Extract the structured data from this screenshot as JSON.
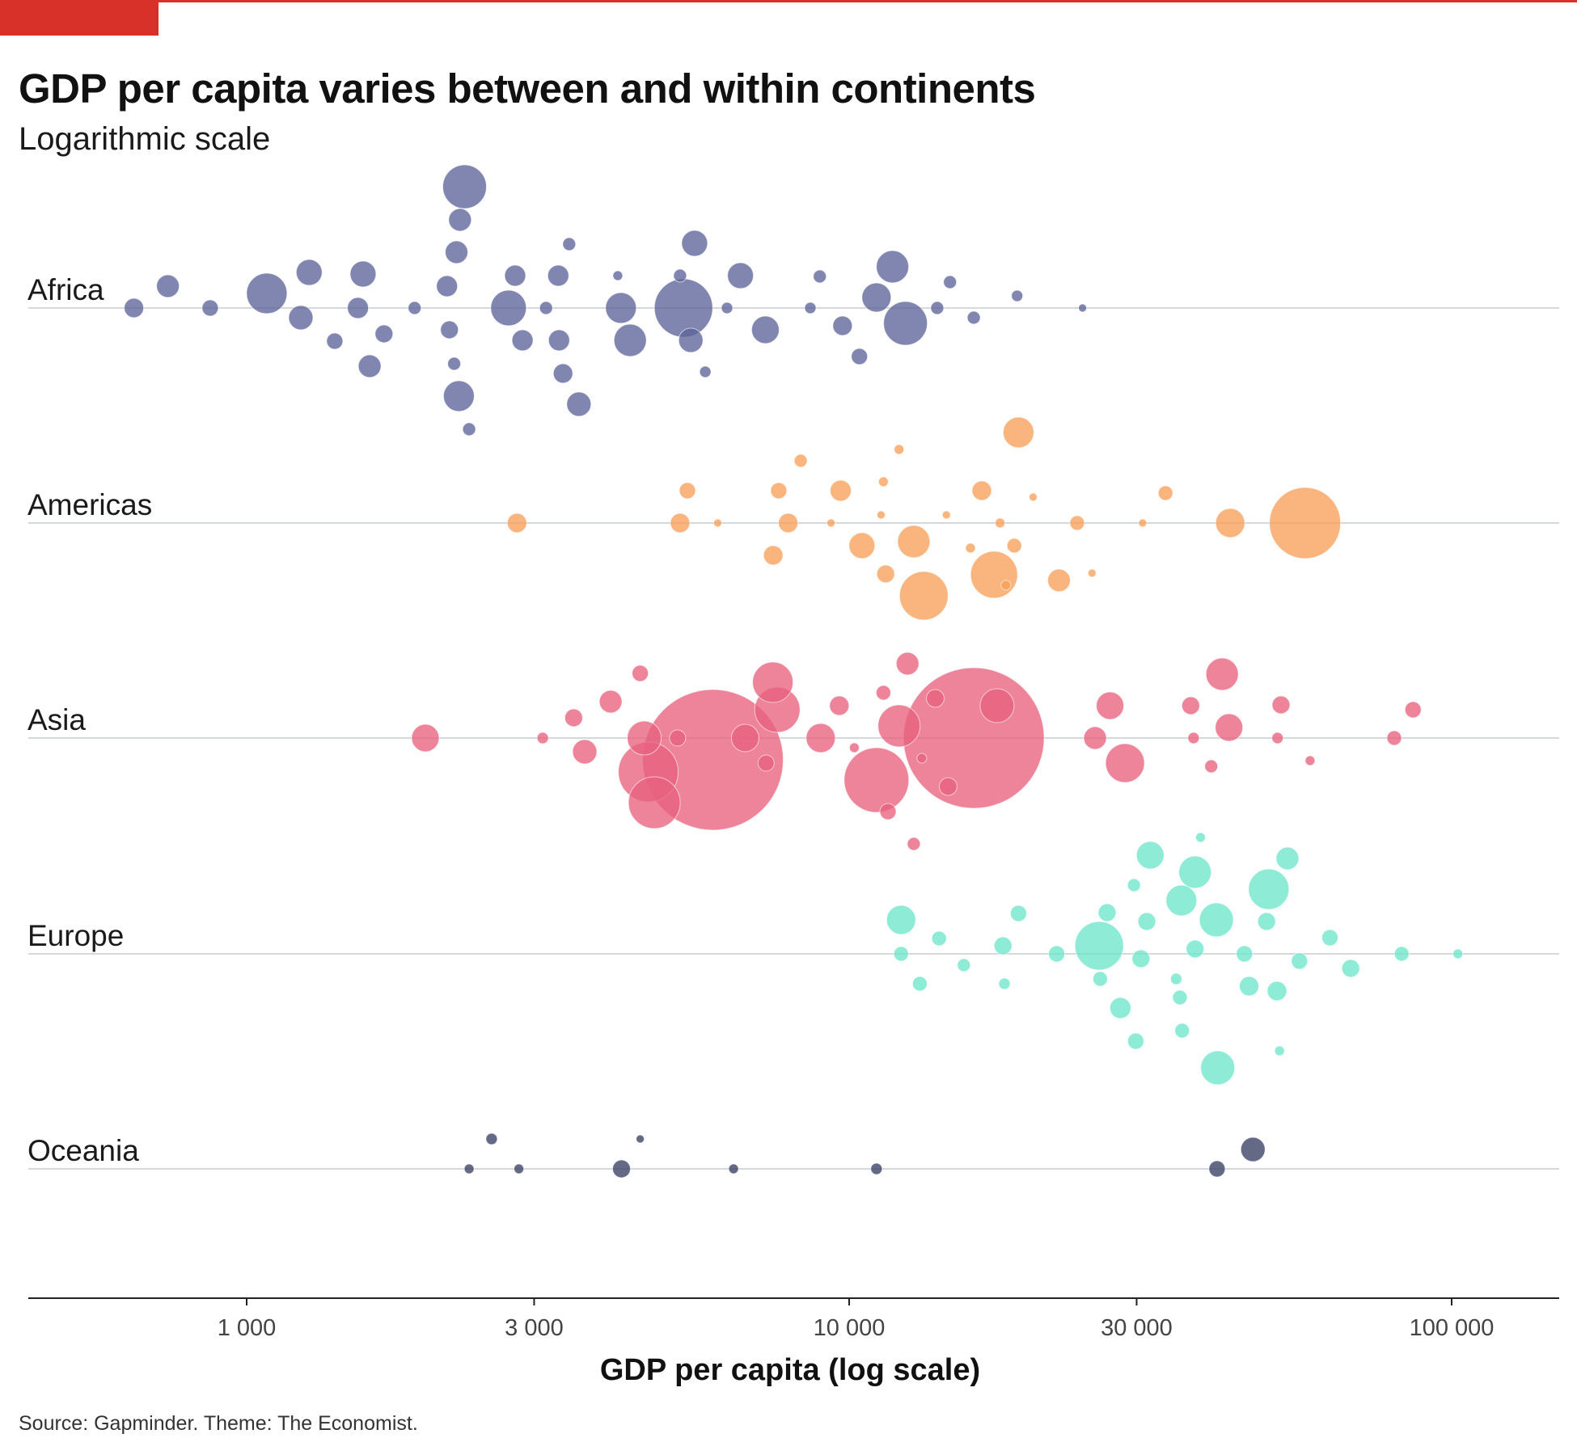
{
  "title": "GDP per capita varies between and within continents",
  "subtitle": "Logarithmic scale",
  "source": "Source: Gapminder. Theme: The Economist.",
  "colors": {
    "accent": "#d7312a",
    "Africa": "#5c6499",
    "Americas": "#f9a05a",
    "Asia": "#e8617e",
    "Europe": "#6ee6cb",
    "Oceania": "#3d4368"
  },
  "chart_data": {
    "type": "scatter",
    "x_scale": "log",
    "xlabel": "GDP per capita (log scale)",
    "xlim": [
      500,
      130000
    ],
    "x_ticks": [
      1000,
      3000,
      10000,
      30000,
      100000
    ],
    "x_tick_labels": [
      "1 000",
      "3 000",
      "10 000",
      "30 000",
      "100 000"
    ],
    "categories": [
      "Africa",
      "Americas",
      "Asia",
      "Europe",
      "Oceania"
    ],
    "grid": "horizontal lines at each category",
    "legend": "none",
    "series": [
      {
        "name": "Africa",
        "points": [
          {
            "x": 650,
            "offset": 0,
            "size": 12
          },
          {
            "x": 740,
            "offset": 27,
            "size": 14
          },
          {
            "x": 870,
            "offset": 0,
            "size": 10
          },
          {
            "x": 1080,
            "offset": 18,
            "size": 25
          },
          {
            "x": 1230,
            "offset": -12,
            "size": 15
          },
          {
            "x": 1270,
            "offset": 44,
            "size": 16
          },
          {
            "x": 1400,
            "offset": -41,
            "size": 10
          },
          {
            "x": 1530,
            "offset": 0,
            "size": 13
          },
          {
            "x": 1560,
            "offset": 42,
            "size": 16
          },
          {
            "x": 1600,
            "offset": -72,
            "size": 14
          },
          {
            "x": 1690,
            "offset": -32,
            "size": 11
          },
          {
            "x": 1900,
            "offset": 0,
            "size": 8
          },
          {
            "x": 2150,
            "offset": 27,
            "size": 13
          },
          {
            "x": 2170,
            "offset": -27,
            "size": 11
          },
          {
            "x": 2230,
            "offset": 69,
            "size": 14
          },
          {
            "x": 2210,
            "offset": -69,
            "size": 8
          },
          {
            "x": 2260,
            "offset": 109,
            "size": 14
          },
          {
            "x": 2300,
            "offset": 150,
            "size": 27
          },
          {
            "x": 2250,
            "offset": -109,
            "size": 19
          },
          {
            "x": 2340,
            "offset": -150,
            "size": 8
          },
          {
            "x": 2720,
            "offset": 0,
            "size": 22
          },
          {
            "x": 2790,
            "offset": 40,
            "size": 13
          },
          {
            "x": 2870,
            "offset": -40,
            "size": 13
          },
          {
            "x": 3140,
            "offset": 0,
            "size": 8
          },
          {
            "x": 3290,
            "offset": 40,
            "size": 13
          },
          {
            "x": 3300,
            "offset": -40,
            "size": 13
          },
          {
            "x": 3350,
            "offset": -81,
            "size": 12
          },
          {
            "x": 3430,
            "offset": 79,
            "size": 8
          },
          {
            "x": 3560,
            "offset": -119,
            "size": 15
          },
          {
            "x": 4130,
            "offset": 40,
            "size": 6
          },
          {
            "x": 4180,
            "offset": 0,
            "size": 19
          },
          {
            "x": 4330,
            "offset": -40,
            "size": 20
          },
          {
            "x": 5240,
            "offset": 40,
            "size": 8
          },
          {
            "x": 5310,
            "offset": 0,
            "size": 36
          },
          {
            "x": 5460,
            "offset": -40,
            "size": 15
          },
          {
            "x": 5540,
            "offset": 80,
            "size": 16
          },
          {
            "x": 5770,
            "offset": -79,
            "size": 7
          },
          {
            "x": 6270,
            "offset": 0,
            "size": 7
          },
          {
            "x": 6600,
            "offset": 40,
            "size": 16
          },
          {
            "x": 7260,
            "offset": -27,
            "size": 17
          },
          {
            "x": 8620,
            "offset": 0,
            "size": 7
          },
          {
            "x": 8940,
            "offset": 39,
            "size": 8
          },
          {
            "x": 9750,
            "offset": -22,
            "size": 12
          },
          {
            "x": 10400,
            "offset": -60,
            "size": 10
          },
          {
            "x": 11100,
            "offset": 13,
            "size": 18
          },
          {
            "x": 11800,
            "offset": 51,
            "size": 20
          },
          {
            "x": 12400,
            "offset": -19,
            "size": 27
          },
          {
            "x": 14000,
            "offset": 0,
            "size": 8
          },
          {
            "x": 14700,
            "offset": 32,
            "size": 8
          },
          {
            "x": 16100,
            "offset": -12,
            "size": 8
          },
          {
            "x": 19000,
            "offset": 15,
            "size": 7
          },
          {
            "x": 24400,
            "offset": 0,
            "size": 5
          }
        ]
      },
      {
        "name": "Americas",
        "points": [
          {
            "x": 2810,
            "offset": 0,
            "size": 12
          },
          {
            "x": 5240,
            "offset": 0,
            "size": 12
          },
          {
            "x": 5390,
            "offset": 40,
            "size": 10
          },
          {
            "x": 6050,
            "offset": 0,
            "size": 5
          },
          {
            "x": 7480,
            "offset": -40,
            "size": 12
          },
          {
            "x": 7640,
            "offset": 40,
            "size": 10
          },
          {
            "x": 7920,
            "offset": 0,
            "size": 12
          },
          {
            "x": 8310,
            "offset": 77,
            "size": 8
          },
          {
            "x": 9330,
            "offset": 0,
            "size": 5
          },
          {
            "x": 9680,
            "offset": 40,
            "size": 13
          },
          {
            "x": 10500,
            "offset": -28,
            "size": 16
          },
          {
            "x": 11300,
            "offset": 10,
            "size": 5
          },
          {
            "x": 11400,
            "offset": 51,
            "size": 6
          },
          {
            "x": 11500,
            "offset": -63,
            "size": 11
          },
          {
            "x": 12100,
            "offset": 91,
            "size": 6
          },
          {
            "x": 12800,
            "offset": -23,
            "size": 20
          },
          {
            "x": 13300,
            "offset": -90,
            "size": 30
          },
          {
            "x": 14500,
            "offset": 10,
            "size": 5
          },
          {
            "x": 15900,
            "offset": -31,
            "size": 6
          },
          {
            "x": 16600,
            "offset": 40,
            "size": 12
          },
          {
            "x": 17400,
            "offset": -64,
            "size": 29
          },
          {
            "x": 17800,
            "offset": 0,
            "size": 6
          },
          {
            "x": 18200,
            "offset": -77,
            "size": 6
          },
          {
            "x": 18800,
            "offset": -28,
            "size": 9
          },
          {
            "x": 19100,
            "offset": 112,
            "size": 19
          },
          {
            "x": 20200,
            "offset": 32,
            "size": 5
          },
          {
            "x": 22300,
            "offset": -71,
            "size": 14
          },
          {
            "x": 23900,
            "offset": 0,
            "size": 9
          },
          {
            "x": 25300,
            "offset": -62,
            "size": 5
          },
          {
            "x": 30700,
            "offset": 0,
            "size": 5
          },
          {
            "x": 33500,
            "offset": 37,
            "size": 9
          },
          {
            "x": 42900,
            "offset": 0,
            "size": 18
          },
          {
            "x": 57100,
            "offset": 0,
            "size": 44
          }
        ]
      },
      {
        "name": "Asia",
        "points": [
          {
            "x": 1980,
            "offset": 0,
            "size": 17
          },
          {
            "x": 3100,
            "offset": 0,
            "size": 7
          },
          {
            "x": 3490,
            "offset": 25,
            "size": 11
          },
          {
            "x": 3640,
            "offset": -17,
            "size": 15
          },
          {
            "x": 4020,
            "offset": 45,
            "size": 14
          },
          {
            "x": 4500,
            "offset": 80,
            "size": 10
          },
          {
            "x": 4570,
            "offset": 0,
            "size": 21
          },
          {
            "x": 4640,
            "offset": -42,
            "size": 37
          },
          {
            "x": 4750,
            "offset": -80,
            "size": 32
          },
          {
            "x": 5190,
            "offset": 0,
            "size": 10
          },
          {
            "x": 5940,
            "offset": -27,
            "size": 87
          },
          {
            "x": 6720,
            "offset": 0,
            "size": 17
          },
          {
            "x": 7280,
            "offset": -31,
            "size": 10
          },
          {
            "x": 7470,
            "offset": 69,
            "size": 25
          },
          {
            "x": 7600,
            "offset": 35,
            "size": 28
          },
          {
            "x": 8970,
            "offset": 0,
            "size": 18
          },
          {
            "x": 9630,
            "offset": 40,
            "size": 12
          },
          {
            "x": 10200,
            "offset": -12,
            "size": 6
          },
          {
            "x": 11100,
            "offset": -52,
            "size": 40
          },
          {
            "x": 11400,
            "offset": 56,
            "size": 9
          },
          {
            "x": 11600,
            "offset": -91,
            "size": 10
          },
          {
            "x": 12100,
            "offset": 15,
            "size": 26
          },
          {
            "x": 12500,
            "offset": 92,
            "size": 14
          },
          {
            "x": 12800,
            "offset": -131,
            "size": 8
          },
          {
            "x": 13200,
            "offset": -25,
            "size": 6
          },
          {
            "x": 13900,
            "offset": 49,
            "size": 11
          },
          {
            "x": 14600,
            "offset": -60,
            "size": 11
          },
          {
            "x": 16100,
            "offset": 0,
            "size": 87
          },
          {
            "x": 17600,
            "offset": 40,
            "size": 21
          },
          {
            "x": 25600,
            "offset": 0,
            "size": 14
          },
          {
            "x": 27100,
            "offset": 40,
            "size": 17
          },
          {
            "x": 28700,
            "offset": -31,
            "size": 24
          },
          {
            "x": 36900,
            "offset": 40,
            "size": 11
          },
          {
            "x": 37300,
            "offset": 0,
            "size": 7
          },
          {
            "x": 39900,
            "offset": -35,
            "size": 8
          },
          {
            "x": 41600,
            "offset": 79,
            "size": 20
          },
          {
            "x": 42700,
            "offset": 13,
            "size": 17
          },
          {
            "x": 51400,
            "offset": 0,
            "size": 7
          },
          {
            "x": 52100,
            "offset": 41,
            "size": 11
          },
          {
            "x": 58200,
            "offset": -28,
            "size": 6
          },
          {
            "x": 80300,
            "offset": 0,
            "size": 9
          },
          {
            "x": 86300,
            "offset": 35,
            "size": 10
          }
        ]
      },
      {
        "name": "Europe",
        "points": [
          {
            "x": 12200,
            "offset": 0,
            "size": 9
          },
          {
            "x": 12200,
            "offset": 42,
            "size": 18
          },
          {
            "x": 13100,
            "offset": -37,
            "size": 9
          },
          {
            "x": 14100,
            "offset": 19,
            "size": 9
          },
          {
            "x": 15500,
            "offset": -14,
            "size": 8
          },
          {
            "x": 18000,
            "offset": 10,
            "size": 11
          },
          {
            "x": 18100,
            "offset": -37,
            "size": 7
          },
          {
            "x": 19100,
            "offset": 50,
            "size": 10
          },
          {
            "x": 22100,
            "offset": 0,
            "size": 10
          },
          {
            "x": 26000,
            "offset": 10,
            "size": 30
          },
          {
            "x": 26100,
            "offset": -31,
            "size": 9
          },
          {
            "x": 26800,
            "offset": 51,
            "size": 11
          },
          {
            "x": 28200,
            "offset": -67,
            "size": 13
          },
          {
            "x": 29700,
            "offset": 85,
            "size": 8
          },
          {
            "x": 29900,
            "offset": -108,
            "size": 10
          },
          {
            "x": 30500,
            "offset": -6,
            "size": 11
          },
          {
            "x": 31200,
            "offset": 40,
            "size": 11
          },
          {
            "x": 31600,
            "offset": 122,
            "size": 17
          },
          {
            "x": 34900,
            "offset": -31,
            "size": 7
          },
          {
            "x": 35400,
            "offset": -54,
            "size": 9
          },
          {
            "x": 35600,
            "offset": 66,
            "size": 19
          },
          {
            "x": 35700,
            "offset": -95,
            "size": 9
          },
          {
            "x": 37500,
            "offset": 6,
            "size": 11
          },
          {
            "x": 37500,
            "offset": 101,
            "size": 20
          },
          {
            "x": 38300,
            "offset": 144,
            "size": 6
          },
          {
            "x": 40700,
            "offset": 42,
            "size": 21
          },
          {
            "x": 40900,
            "offset": -141,
            "size": 21
          },
          {
            "x": 45300,
            "offset": 0,
            "size": 10
          },
          {
            "x": 46100,
            "offset": -40,
            "size": 12
          },
          {
            "x": 49300,
            "offset": 40,
            "size": 11
          },
          {
            "x": 49700,
            "offset": 80,
            "size": 25
          },
          {
            "x": 51300,
            "offset": -46,
            "size": 12
          },
          {
            "x": 51800,
            "offset": -120,
            "size": 6
          },
          {
            "x": 53400,
            "offset": 118,
            "size": 14
          },
          {
            "x": 55900,
            "offset": -9,
            "size": 10
          },
          {
            "x": 62800,
            "offset": 20,
            "size": 10
          },
          {
            "x": 68000,
            "offset": -18,
            "size": 11
          },
          {
            "x": 82600,
            "offset": 0,
            "size": 9
          },
          {
            "x": 102400,
            "offset": 0,
            "size": 6
          }
        ]
      },
      {
        "name": "Oceania",
        "points": [
          {
            "x": 2340,
            "offset": 0,
            "size": 6
          },
          {
            "x": 2550,
            "offset": 37,
            "size": 7
          },
          {
            "x": 2830,
            "offset": 0,
            "size": 6
          },
          {
            "x": 4190,
            "offset": 0,
            "size": 11
          },
          {
            "x": 4500,
            "offset": 37,
            "size": 5
          },
          {
            "x": 6430,
            "offset": 0,
            "size": 6
          },
          {
            "x": 11100,
            "offset": 0,
            "size": 7
          },
          {
            "x": 40800,
            "offset": 0,
            "size": 10
          },
          {
            "x": 46800,
            "offset": 24,
            "size": 15
          }
        ]
      }
    ]
  }
}
